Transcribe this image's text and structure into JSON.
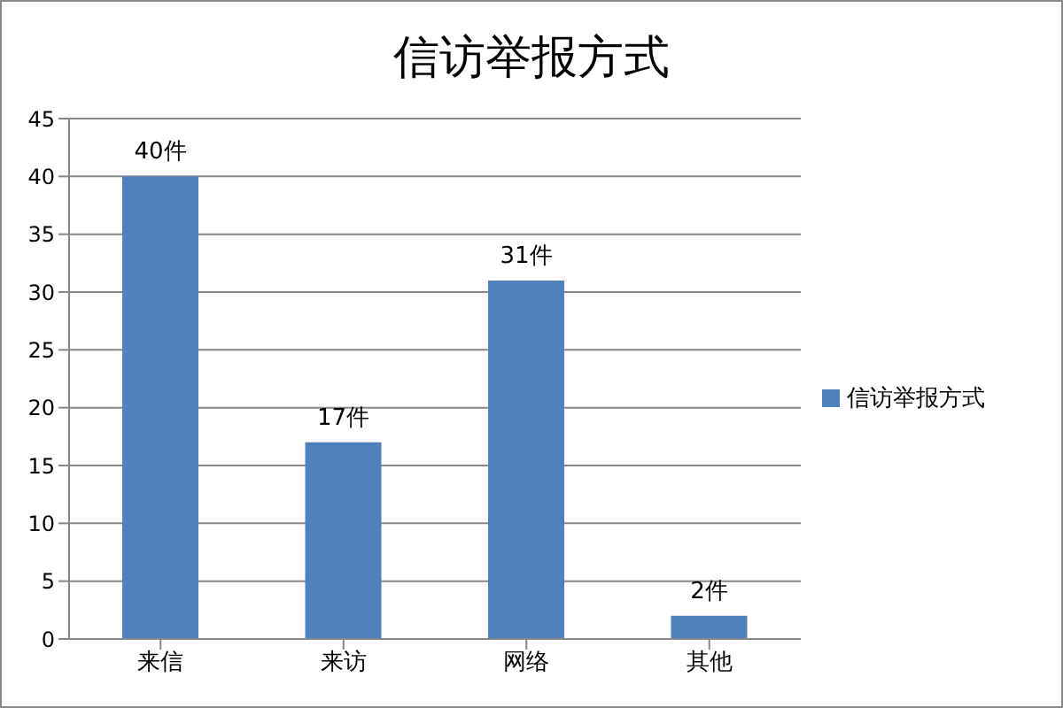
{
  "chart_data": {
    "type": "bar",
    "title": "信访举报方式",
    "categories": [
      "来信",
      "来访",
      "网络",
      "其他"
    ],
    "series": [
      {
        "name": "信访举报方式",
        "color": "#4f81bd",
        "values": [
          40,
          17,
          31,
          2
        ],
        "value_labels": [
          "40件",
          "17件",
          "31件",
          "2件"
        ]
      }
    ],
    "ylim": [
      0,
      45
    ],
    "yticks": [
      0,
      5,
      10,
      15,
      20,
      25,
      30,
      35,
      40,
      45
    ],
    "grid": "y",
    "legend": "right"
  }
}
